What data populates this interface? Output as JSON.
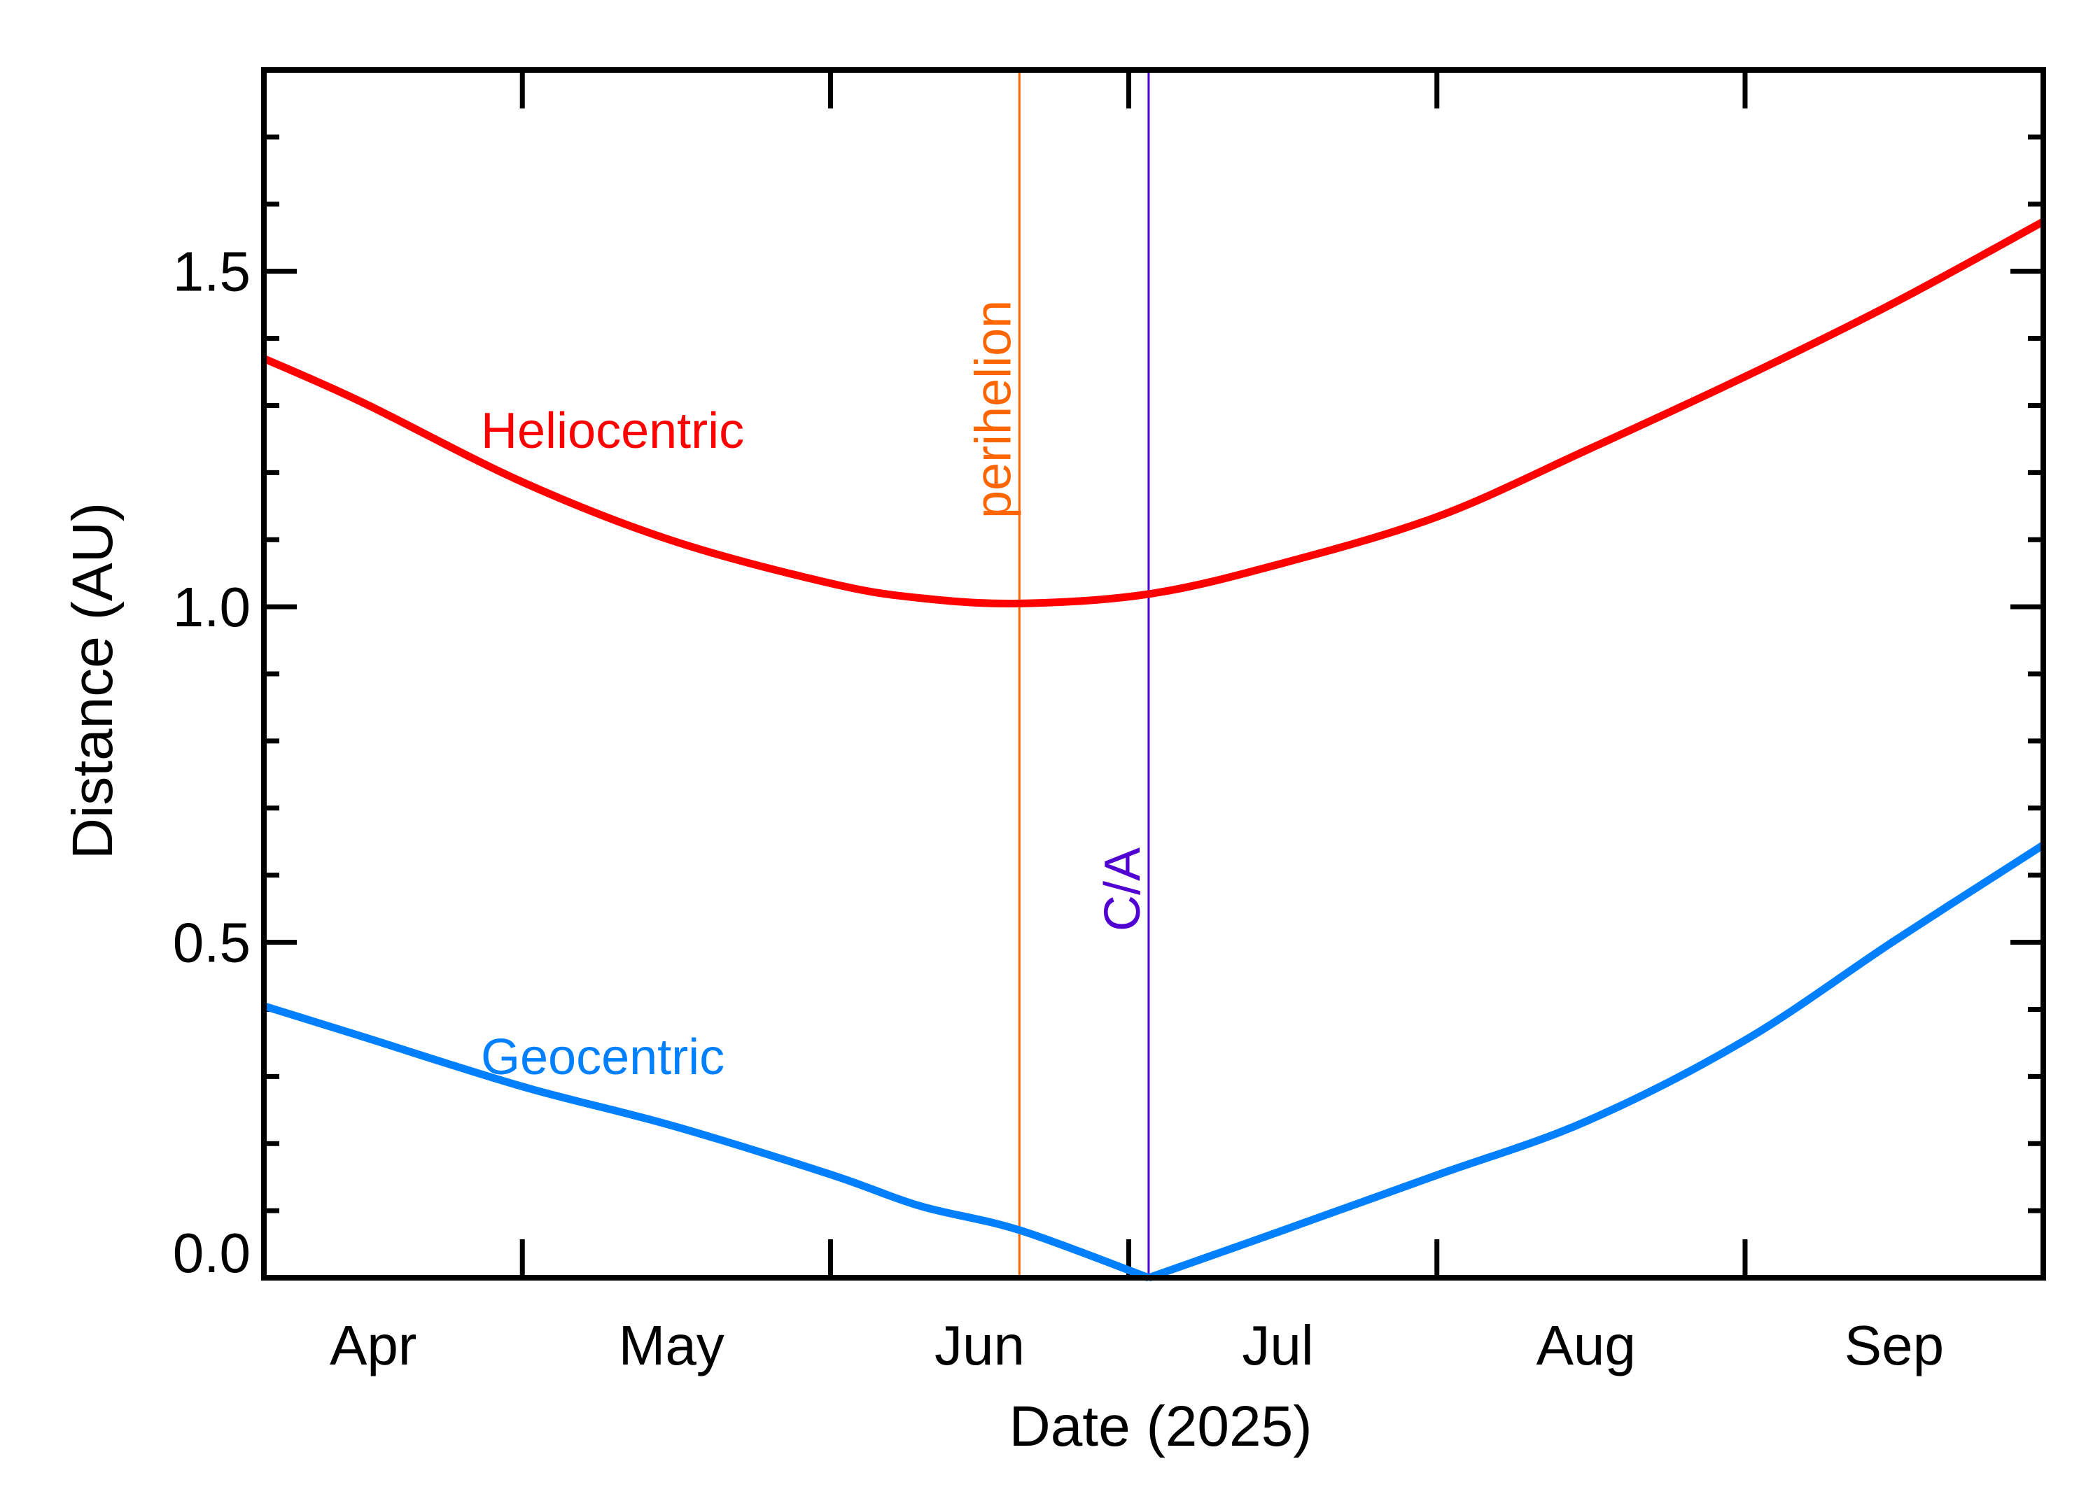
{
  "chart_data": {
    "type": "line",
    "title": "",
    "xlabel": "Date (2025)",
    "ylabel": "Distance (AU)",
    "xlim": [
      "2025-04-05",
      "2025-10-01"
    ],
    "ylim": [
      0,
      1.8
    ],
    "y_ticks": [
      0.0,
      0.5,
      1.0,
      1.5
    ],
    "y_tick_labels": [
      "0.0",
      "0.5",
      "1.0",
      "1.5"
    ],
    "y_minor_step": 0.1,
    "x_ticks": [
      "2025-05-01",
      "2025-06-01",
      "2025-07-01",
      "2025-08-01",
      "2025-09-01"
    ],
    "x_tick_labels": [
      {
        "label": "Apr",
        "date": "2025-04-16"
      },
      {
        "label": "May",
        "date": "2025-05-16"
      },
      {
        "label": "Jun",
        "date": "2025-06-16"
      },
      {
        "label": "Jul",
        "date": "2025-07-16"
      },
      {
        "label": "Aug",
        "date": "2025-08-16"
      },
      {
        "label": "Sep",
        "date": "2025-09-16"
      }
    ],
    "grid": false,
    "series": [
      {
        "name": "Heliocentric",
        "color": "#ff0000",
        "x": [
          "2025-04-05",
          "2025-04-15",
          "2025-05-01",
          "2025-05-16",
          "2025-06-01",
          "2025-06-10",
          "2025-06-20",
          "2025-07-03",
          "2025-07-16",
          "2025-08-01",
          "2025-08-16",
          "2025-09-01",
          "2025-09-16",
          "2025-10-01"
        ],
        "y": [
          1.37,
          1.304,
          1.186,
          1.099,
          1.035,
          1.013,
          1.005,
          1.019,
          1.063,
          1.134,
          1.233,
          1.343,
          1.453,
          1.574
        ]
      },
      {
        "name": "Geocentric",
        "color": "#0080ff",
        "x": [
          "2025-04-05",
          "2025-04-15",
          "2025-05-01",
          "2025-05-16",
          "2025-06-01",
          "2025-06-10",
          "2025-06-20",
          "2025-07-03",
          "2025-07-16",
          "2025-08-01",
          "2025-08-16",
          "2025-09-01",
          "2025-09-16",
          "2025-10-01"
        ],
        "y": [
          0.405,
          0.359,
          0.285,
          0.227,
          0.154,
          0.107,
          0.071,
          0.0,
          0.068,
          0.153,
          0.233,
          0.354,
          0.502,
          0.645
        ]
      }
    ],
    "markers": [
      {
        "label": "perihelion",
        "date": "2025-06-20",
        "color": "#ff6600"
      },
      {
        "label": "C/A",
        "date": "2025-07-03",
        "color": "#5000d0"
      }
    ]
  }
}
